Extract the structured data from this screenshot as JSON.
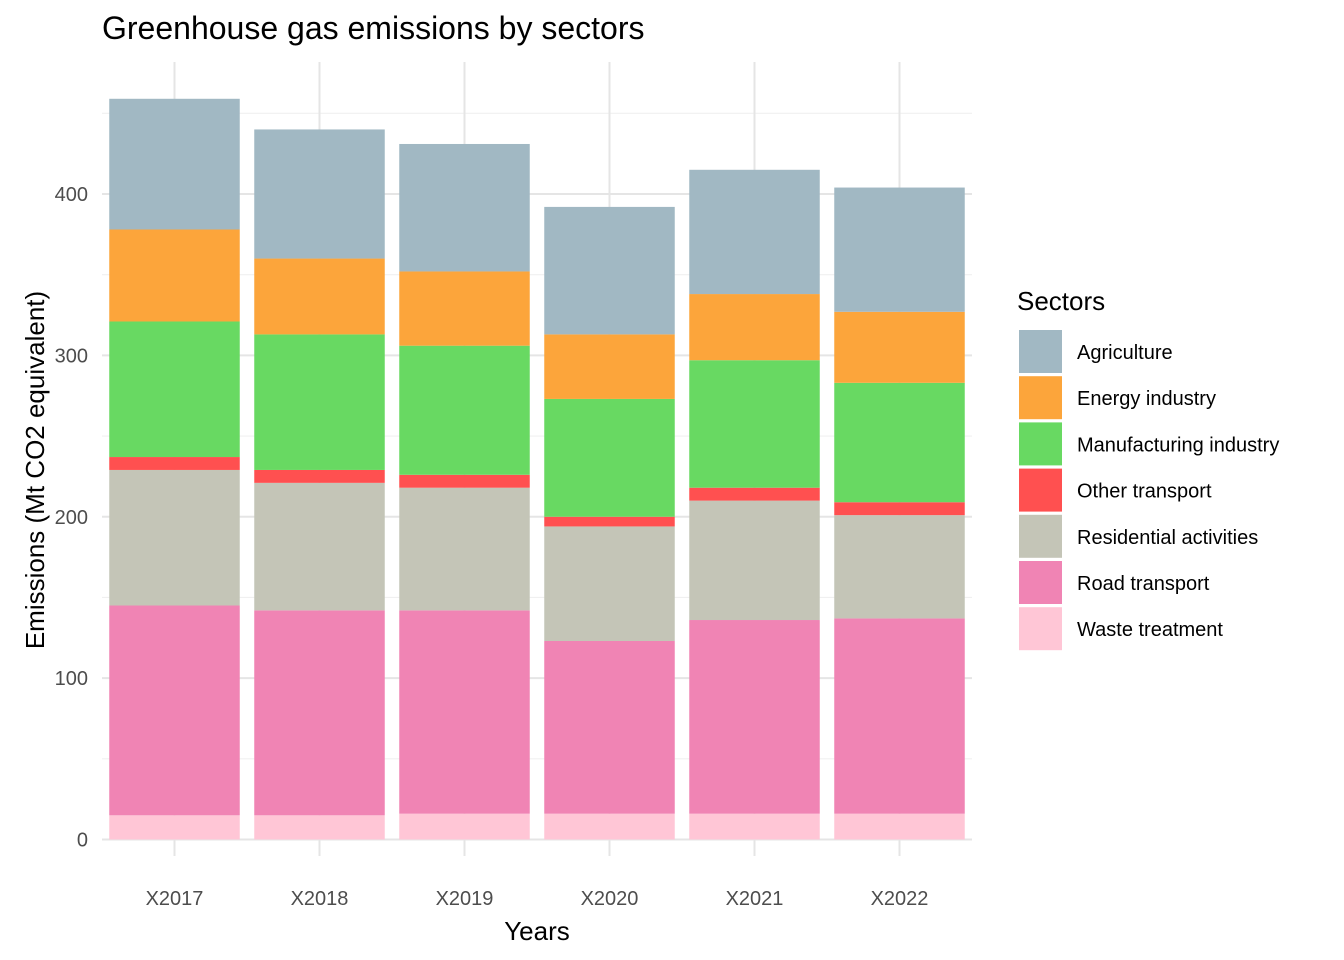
{
  "chart_data": {
    "type": "bar",
    "stacked": true,
    "title": "Greenhouse gas emissions by sectors",
    "xlabel": "Years",
    "ylabel": "Emissions (Mt CO2 equivalent)",
    "ylim": [
      0,
      480
    ],
    "yticks": [
      0,
      100,
      200,
      300,
      400
    ],
    "grid": true,
    "legend": {
      "title": "Sectors",
      "placement": "right"
    },
    "categories": [
      "X2017",
      "X2018",
      "X2019",
      "X2020",
      "X2021",
      "X2022"
    ],
    "series": [
      {
        "name": "Waste treatment",
        "color": "#ffc6d6",
        "values": [
          15,
          15,
          16,
          16,
          16,
          16
        ]
      },
      {
        "name": "Road transport",
        "color": "#f084b4",
        "values": [
          130,
          127,
          126,
          107,
          120,
          121
        ]
      },
      {
        "name": "Residential activities",
        "color": "#c4c5b7",
        "values": [
          84,
          79,
          76,
          71,
          74,
          64
        ]
      },
      {
        "name": "Other transport",
        "color": "#ff5050",
        "values": [
          8,
          8,
          8,
          6,
          8,
          8
        ]
      },
      {
        "name": "Manufacturing industry",
        "color": "#68d962",
        "values": [
          84,
          84,
          80,
          73,
          79,
          74
        ]
      },
      {
        "name": "Energy industry",
        "color": "#fca53b",
        "values": [
          57,
          47,
          46,
          40,
          41,
          44
        ]
      },
      {
        "name": "Agriculture",
        "color": "#a1b8c3",
        "values": [
          81,
          80,
          79,
          79,
          77,
          77
        ]
      }
    ],
    "legend_order": [
      "Agriculture",
      "Energy industry",
      "Manufacturing industry",
      "Other transport",
      "Residential activities",
      "Road transport",
      "Waste treatment"
    ]
  }
}
